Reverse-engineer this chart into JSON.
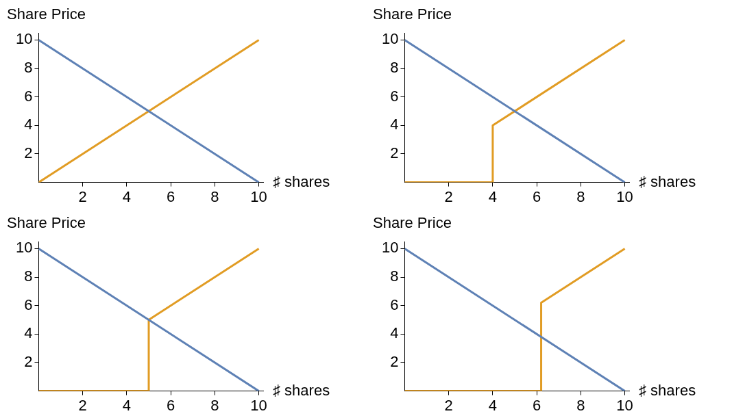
{
  "chart_data": [
    {
      "type": "line",
      "ylabel": "Share Price",
      "xlabel": "♯ shares",
      "xlim": [
        0,
        10.2
      ],
      "ylim": [
        0,
        10.5
      ],
      "xticks": [
        2,
        4,
        6,
        8,
        10
      ],
      "yticks": [
        2,
        4,
        6,
        8,
        10
      ],
      "series": [
        {
          "color": "#5e81b5",
          "x": [
            0,
            10
          ],
          "values": [
            10,
            0
          ]
        },
        {
          "color": "#e19c24",
          "x": [
            0,
            10
          ],
          "values": [
            0,
            10
          ]
        }
      ]
    },
    {
      "type": "line",
      "ylabel": "Share Price",
      "xlabel": "♯ shares",
      "xlim": [
        0,
        10.2
      ],
      "ylim": [
        0,
        10.5
      ],
      "xticks": [
        2,
        4,
        6,
        8,
        10
      ],
      "yticks": [
        2,
        4,
        6,
        8,
        10
      ],
      "series": [
        {
          "color": "#5e81b5",
          "x": [
            0,
            10
          ],
          "values": [
            10,
            0
          ]
        },
        {
          "color": "#e19c24",
          "x": [
            0,
            4,
            4,
            10
          ],
          "values": [
            0,
            0,
            4,
            10
          ]
        }
      ]
    },
    {
      "type": "line",
      "ylabel": "Share Price",
      "xlabel": "♯ shares",
      "xlim": [
        0,
        10.2
      ],
      "ylim": [
        0,
        10.5
      ],
      "xticks": [
        2,
        4,
        6,
        8,
        10
      ],
      "yticks": [
        2,
        4,
        6,
        8,
        10
      ],
      "series": [
        {
          "color": "#5e81b5",
          "x": [
            0,
            10
          ],
          "values": [
            10,
            0
          ]
        },
        {
          "color": "#e19c24",
          "x": [
            0,
            5,
            5,
            10
          ],
          "values": [
            0,
            0,
            5,
            10
          ]
        }
      ]
    },
    {
      "type": "line",
      "ylabel": "Share Price",
      "xlabel": "♯ shares",
      "xlim": [
        0,
        10.2
      ],
      "ylim": [
        0,
        10.5
      ],
      "xticks": [
        2,
        4,
        6,
        8,
        10
      ],
      "yticks": [
        2,
        4,
        6,
        8,
        10
      ],
      "series": [
        {
          "color": "#5e81b5",
          "x": [
            0,
            10
          ],
          "values": [
            10,
            0
          ]
        },
        {
          "color": "#e19c24",
          "x": [
            0,
            6.2,
            6.2,
            10
          ],
          "values": [
            0,
            0,
            6.2,
            10
          ]
        }
      ]
    }
  ]
}
